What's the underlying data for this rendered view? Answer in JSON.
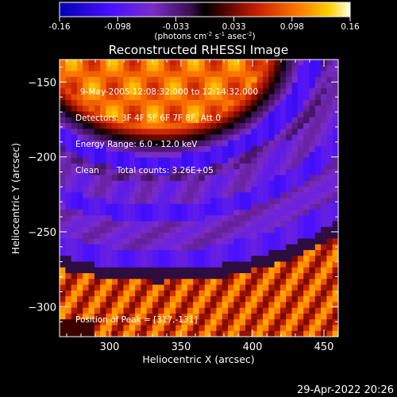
{
  "chart_data": {
    "type": "heatmap",
    "title": "Reconstructed RHESSI Image",
    "xlabel": "Heliocentric X (arcsec)",
    "ylabel": "Heliocentric Y (arcsec)",
    "xlim": [
      265,
      460
    ],
    "ylim": [
      -320,
      -135
    ],
    "xticks": [
      300,
      350,
      400,
      450
    ],
    "yticks": [
      -150,
      -200,
      -250,
      -300
    ],
    "colorbar": {
      "range": [
        -0.16,
        0.16
      ],
      "ticks": [
        "-0.16",
        "-0.098",
        "-0.033",
        "0.033",
        "0.098",
        "0.16"
      ],
      "unit_parts": [
        "(photons cm",
        "-2",
        " s",
        "-1",
        " asec",
        "-2",
        ")"
      ]
    },
    "annotations": {
      "time_range": "9-May-2005 12:08:32.000 to 12:14:32.000",
      "detectors": "Detectors: 3F 4F 5F 6F 7F 8F, Att 0",
      "energy_range": "Energy Range: 6.0 - 12.0 keV",
      "clean_label": "Clean",
      "total_counts": "Total counts: 3.26E+05",
      "peak_position": "Position of Peak = [317,-131]"
    }
  },
  "footer": {
    "timestamp": "29-Apr-2022 20:26"
  }
}
